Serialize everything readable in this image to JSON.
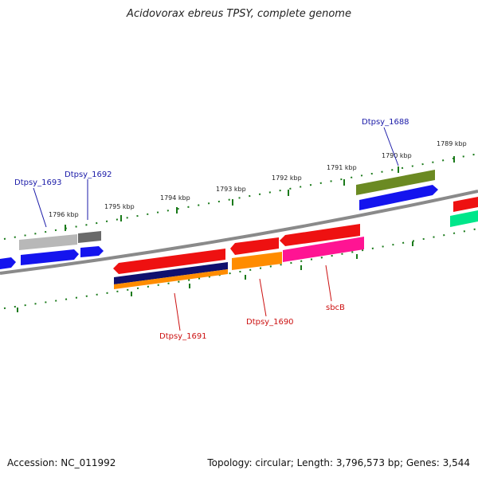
{
  "title": "Acidovorax ebreus TPSY, complete genome",
  "footer": {
    "accession": "Accession: NC_011992",
    "topology": "Topology: circular; Length: 3,796,573 bp; Genes: 3,544"
  },
  "colors": {
    "backbone": "#8a8a8a",
    "tick": "#1a7a1a",
    "forward_label": "#1a1aa8",
    "reverse_label": "#cc1111"
  },
  "kbp_labels": [
    "1796 kbp",
    "1795 kbp",
    "1794 kbp",
    "1793 kbp",
    "1792 kbp",
    "1791 kbp",
    "1790 kbp",
    "1789 kbp"
  ],
  "gene_labels": {
    "dtpsy_1693": "Dtpsy_1693",
    "dtpsy_1692": "Dtpsy_1692",
    "dtpsy_1688": "Dtpsy_1688",
    "dtpsy_1691": "Dtpsy_1691",
    "dtpsy_1690": "Dtpsy_1690",
    "sbcb": "sbcB"
  },
  "genes": [
    {
      "name": "gene-grey-light",
      "color": "#b8b8b8"
    },
    {
      "name": "gene-grey-dark",
      "color": "#6a6a6a"
    },
    {
      "name": "gene-blue-1",
      "color": "#1414ee"
    },
    {
      "name": "gene-blue-2",
      "color": "#1414ee"
    },
    {
      "name": "gene-blue-3",
      "color": "#1414ee"
    },
    {
      "name": "gene-olive",
      "color": "#6b8a22"
    },
    {
      "name": "gene-blue-4",
      "color": "#1414ee"
    },
    {
      "name": "gene-red-1",
      "color": "#ee1111"
    },
    {
      "name": "gene-red-2",
      "color": "#ee1111"
    },
    {
      "name": "gene-red-3",
      "color": "#ee1111"
    },
    {
      "name": "gene-red-4",
      "color": "#ee1111"
    },
    {
      "name": "gene-navy",
      "color": "#10106e"
    },
    {
      "name": "gene-orange-1",
      "color": "#ff8c00"
    },
    {
      "name": "gene-orange-2",
      "color": "#ff8c00"
    },
    {
      "name": "gene-magenta",
      "color": "#ff1493"
    },
    {
      "name": "gene-green",
      "color": "#00e68a"
    }
  ]
}
